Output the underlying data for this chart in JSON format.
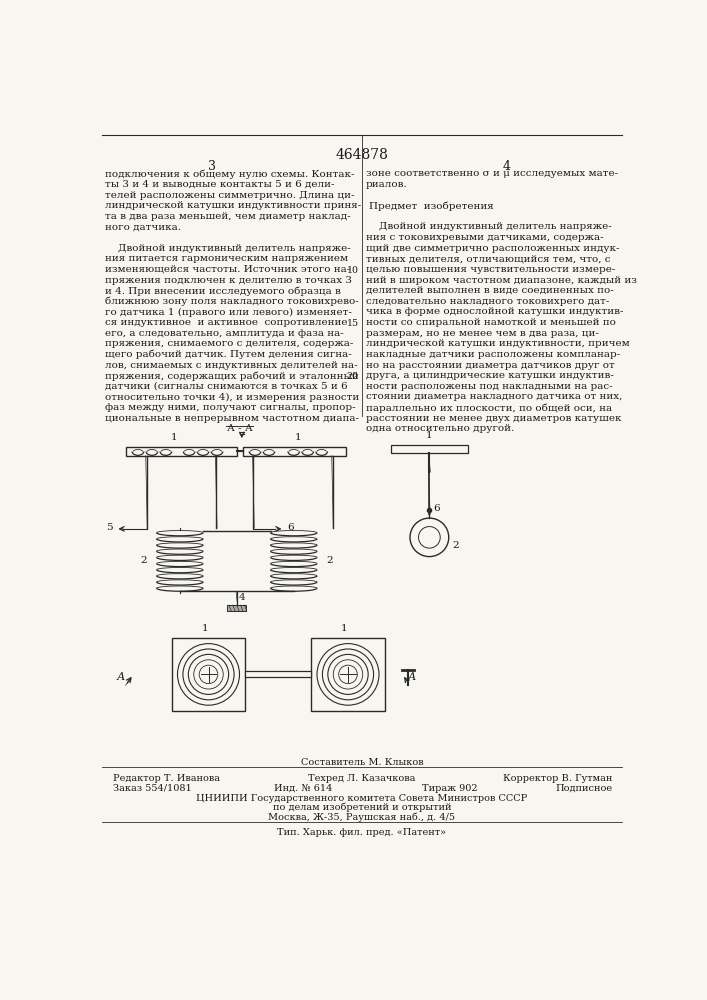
{
  "patent_number": "464878",
  "page_left": "3",
  "page_right": "4",
  "text_left": [
    "подключения к общему нулю схемы. Контак-",
    "ты 3 и 4 и выводные контакты 5 и 6 дели-",
    "телей расположены симметрично. Длина ци-",
    "линдрической катушки индуктивности приня-",
    "та в два раза меньшей, чем диаметр наклад-",
    "ного датчика.",
    "",
    "    Двойной индуктивный делитель напряже-",
    "ния питается гармоническим напряжением",
    "изменяющейся частоты. Источник этого на-",
    "пряжения подключен к делителю в точках 3",
    "и 4. При внесении исследуемого образца в",
    "ближнюю зону поля накладного токовихрево-",
    "го датчика 1 (правого или левого) изменяет-",
    "ся индуктивное  и активное  сопротивление",
    "его, а следовательно, амплитуда и фаза на-",
    "пряжения, снимаемого с делителя, содержа-",
    "щего рабочий датчик. Путем деления сигна-",
    "лов, снимаемых с индуктивных делителей на-",
    "пряжения, содержащих рабочий и эталонный",
    "датчики (сигналы снимаются в точках 5 и 6",
    "относительно точки 4), и измерения разности",
    "фаз между ними, получают сигналы, пропор-",
    "циональные в непрерывном частотном диапа-"
  ],
  "text_right": [
    "зоне соответственно σ и μ исследуемых мате-",
    "риалов.",
    "",
    "    Предмет  изобретения",
    "",
    "    Двойной индуктивный делитель напряже-",
    "ния с токовихревыми датчиками, содержа-",
    "щий две симметрично расположенных индук-",
    "тивных делителя, отличающийся тем, что, с",
    "целью повышения чувствительности измере-",
    "ний в широком частотном диапазоне, каждый из",
    "делителей выполнен в виде соединенных по-",
    "следовательно накладного токовихрего дат-",
    "чика в форме однослойной катушки индуктив-",
    "ности со спиральной намоткой и меньшей по",
    "размерам, но не менее чем в два раза, ци-",
    "линдрической катушки индуктивности, причем",
    "накладные датчики расположены компланар-",
    "но на расстоянии диаметра датчиков друг от",
    "друга, а цилиндрические катушки индуктив-",
    "ности расположены под накладными на рас-",
    "стоянии диаметра накладного датчика от них,",
    "параллельно их плоскости, по общей оси, на",
    "расстоянии не менее двух диаметров катушек",
    "одна относительно другой."
  ],
  "bg_color": "#f8f6f0",
  "text_color": "#1a1a1a",
  "line_color": "#2a2a2a"
}
